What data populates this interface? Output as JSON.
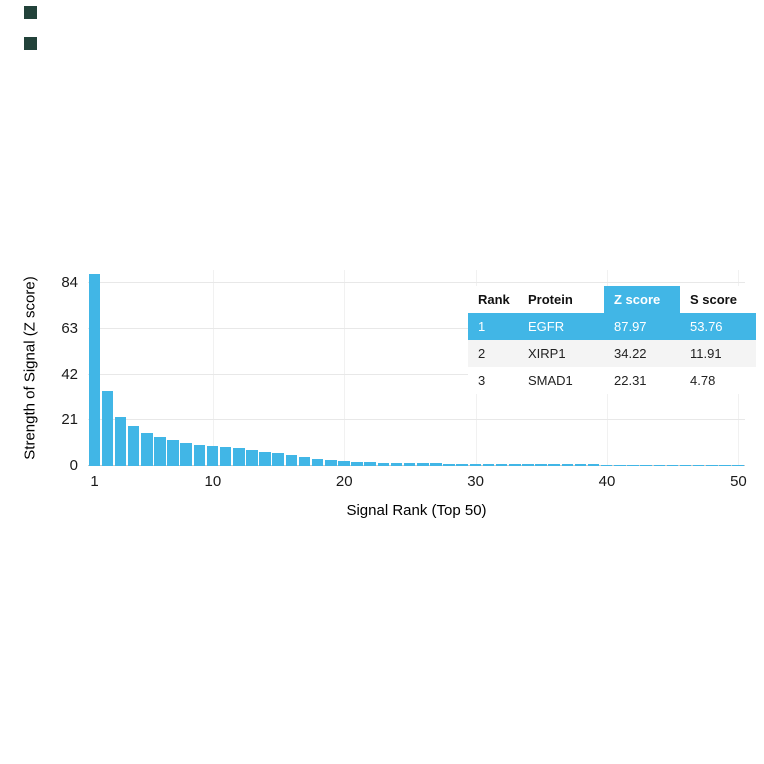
{
  "marks": {
    "color": "#22423a"
  },
  "chart_data": {
    "type": "bar",
    "title": "",
    "xlabel": "Signal Rank (Top 50)",
    "ylabel": "Strength of Signal (Z score)",
    "bar_color": "#41b6e6",
    "grid": "horizontal-on",
    "legend": "none",
    "ylim": [
      0,
      90
    ],
    "yticks": [
      0,
      21,
      42,
      63,
      84
    ],
    "xticks": [
      1,
      10,
      20,
      30,
      40,
      50
    ],
    "x_range": [
      1,
      50
    ],
    "values": [
      87.97,
      34.22,
      22.31,
      18.6,
      15.0,
      13.2,
      11.8,
      10.6,
      9.8,
      9.2,
      8.7,
      8.2,
      7.4,
      6.6,
      5.8,
      5.0,
      4.2,
      3.4,
      2.8,
      2.3,
      1.9,
      1.7,
      1.6,
      1.5,
      1.4,
      1.3,
      1.2,
      1.15,
      1.1,
      1.05,
      1.0,
      0.95,
      0.9,
      0.85,
      0.8,
      0.78,
      0.75,
      0.72,
      0.7,
      0.68,
      0.65,
      0.62,
      0.6,
      0.58,
      0.55,
      0.52,
      0.5,
      0.48,
      0.45,
      0.42
    ]
  },
  "table": {
    "accent": "#41b6e6",
    "headers": [
      "Rank",
      "Protein",
      "Z score",
      "S score"
    ],
    "rows": [
      {
        "rank": "1",
        "protein": "EGFR",
        "z": "87.97",
        "s": "53.76",
        "highlight": true
      },
      {
        "rank": "2",
        "protein": "XIRP1",
        "z": "34.22",
        "s": "11.91",
        "highlight": false
      },
      {
        "rank": "3",
        "protein": "SMAD1",
        "z": "22.31",
        "s": "4.78",
        "highlight": false
      }
    ]
  }
}
